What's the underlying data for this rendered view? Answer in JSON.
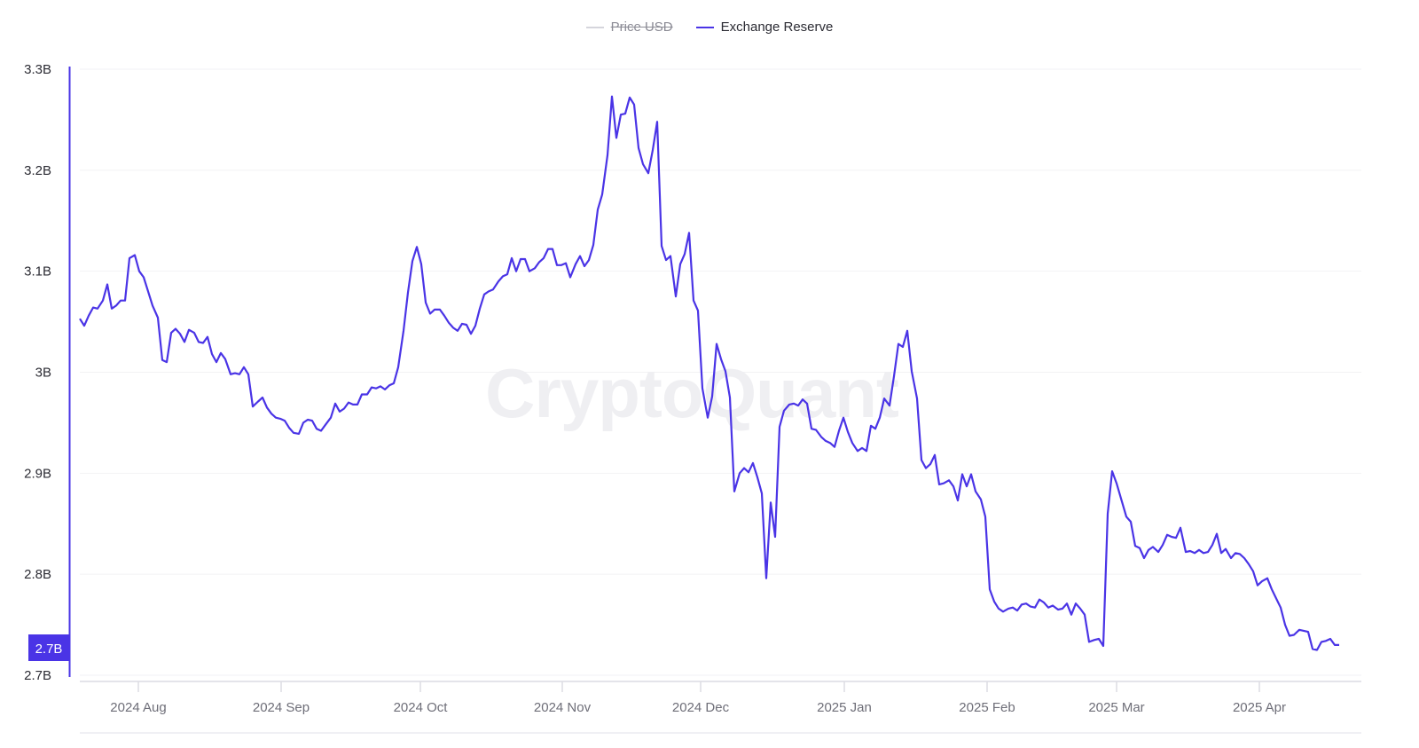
{
  "legend": [
    {
      "label": "Price USD",
      "color": "#cfcfd6",
      "enabled": false
    },
    {
      "label": "Exchange Reserve",
      "color": "#4a34e6",
      "enabled": true
    }
  ],
  "watermark": "CryptoQuant",
  "current_value_badge": "2.7B",
  "chart_data": {
    "type": "line",
    "title": "",
    "xlabel": "",
    "ylabel": "",
    "ylim": [
      2.7,
      3.3
    ],
    "y_ticks": [
      "3.3B",
      "3.2B",
      "3.1B",
      "3B",
      "2.9B",
      "2.8B",
      "2.7B"
    ],
    "x_ticks": [
      "2024 Aug",
      "2024 Sep",
      "2024 Oct",
      "2024 Nov",
      "2024 Dec",
      "2025 Jan",
      "2025 Feb",
      "2025 Mar",
      "2025 Apr"
    ],
    "grid": true,
    "legend_position": "top-center",
    "accent_color": "#4a34e6",
    "series": [
      {
        "name": "Exchange Reserve",
        "unit": "B",
        "points": [
          [
            90,
            3.053
          ],
          [
            95,
            3.046
          ],
          [
            100,
            3.056
          ],
          [
            105,
            3.064
          ],
          [
            110,
            3.063
          ],
          [
            116,
            3.071
          ],
          [
            121,
            3.087
          ],
          [
            126,
            3.063
          ],
          [
            131,
            3.066
          ],
          [
            136,
            3.071
          ],
          [
            141,
            3.071
          ],
          [
            146,
            3.113
          ],
          [
            152,
            3.116
          ],
          [
            157,
            3.1
          ],
          [
            162,
            3.094
          ],
          [
            167,
            3.08
          ],
          [
            172,
            3.066
          ],
          [
            178,
            3.054
          ],
          [
            183,
            3.012
          ],
          [
            188,
            3.01
          ],
          [
            193,
            3.039
          ],
          [
            198,
            3.043
          ],
          [
            203,
            3.038
          ],
          [
            208,
            3.03
          ],
          [
            213,
            3.042
          ],
          [
            219,
            3.039
          ],
          [
            224,
            3.03
          ],
          [
            229,
            3.029
          ],
          [
            234,
            3.035
          ],
          [
            239,
            3.018
          ],
          [
            244,
            3.01
          ],
          [
            249,
            3.019
          ],
          [
            254,
            3.013
          ],
          [
            260,
            2.998
          ],
          [
            265,
            2.999
          ],
          [
            270,
            2.998
          ],
          [
            275,
            3.005
          ],
          [
            280,
            2.998
          ],
          [
            285,
            2.966
          ],
          [
            291,
            2.971
          ],
          [
            296,
            2.975
          ],
          [
            301,
            2.965
          ],
          [
            306,
            2.959
          ],
          [
            311,
            2.955
          ],
          [
            316,
            2.954
          ],
          [
            321,
            2.952
          ],
          [
            326,
            2.945
          ],
          [
            331,
            2.94
          ],
          [
            337,
            2.939
          ],
          [
            342,
            2.95
          ],
          [
            347,
            2.953
          ],
          [
            352,
            2.952
          ],
          [
            357,
            2.944
          ],
          [
            362,
            2.942
          ],
          [
            367,
            2.948
          ],
          [
            373,
            2.955
          ],
          [
            378,
            2.969
          ],
          [
            383,
            2.961
          ],
          [
            388,
            2.964
          ],
          [
            393,
            2.97
          ],
          [
            398,
            2.968
          ],
          [
            403,
            2.968
          ],
          [
            408,
            2.978
          ],
          [
            414,
            2.978
          ],
          [
            419,
            2.985
          ],
          [
            424,
            2.984
          ],
          [
            429,
            2.986
          ],
          [
            434,
            2.983
          ],
          [
            439,
            2.987
          ],
          [
            444,
            2.989
          ],
          [
            449,
            3.005
          ],
          [
            455,
            3.041
          ],
          [
            460,
            3.079
          ],
          [
            465,
            3.11
          ],
          [
            470,
            3.124
          ],
          [
            475,
            3.107
          ],
          [
            480,
            3.069
          ],
          [
            485,
            3.058
          ],
          [
            490,
            3.062
          ],
          [
            496,
            3.062
          ],
          [
            501,
            3.056
          ],
          [
            506,
            3.049
          ],
          [
            511,
            3.044
          ],
          [
            516,
            3.041
          ],
          [
            521,
            3.048
          ],
          [
            526,
            3.047
          ],
          [
            531,
            3.038
          ],
          [
            536,
            3.046
          ],
          [
            541,
            3.063
          ],
          [
            546,
            3.077
          ],
          [
            551,
            3.08
          ],
          [
            556,
            3.082
          ],
          [
            562,
            3.09
          ],
          [
            567,
            3.095
          ],
          [
            572,
            3.097
          ],
          [
            577,
            3.113
          ],
          [
            582,
            3.1
          ],
          [
            587,
            3.112
          ],
          [
            592,
            3.112
          ],
          [
            597,
            3.1
          ],
          [
            603,
            3.103
          ],
          [
            608,
            3.109
          ],
          [
            613,
            3.113
          ],
          [
            618,
            3.122
          ],
          [
            623,
            3.122
          ],
          [
            628,
            3.106
          ],
          [
            633,
            3.106
          ],
          [
            638,
            3.108
          ],
          [
            643,
            3.094
          ],
          [
            649,
            3.107
          ],
          [
            654,
            3.115
          ],
          [
            659,
            3.105
          ],
          [
            664,
            3.111
          ],
          [
            669,
            3.126
          ],
          [
            674,
            3.161
          ],
          [
            679,
            3.176
          ],
          [
            685,
            3.215
          ],
          [
            690,
            3.273
          ],
          [
            695,
            3.232
          ],
          [
            700,
            3.255
          ],
          [
            705,
            3.256
          ],
          [
            710,
            3.272
          ],
          [
            715,
            3.265
          ],
          [
            720,
            3.222
          ],
          [
            725,
            3.206
          ],
          [
            731,
            3.197
          ],
          [
            736,
            3.22
          ],
          [
            741,
            3.248
          ],
          [
            746,
            3.125
          ],
          [
            751,
            3.111
          ],
          [
            756,
            3.115
          ],
          [
            762,
            3.075
          ],
          [
            767,
            3.107
          ],
          [
            772,
            3.117
          ],
          [
            777,
            3.138
          ],
          [
            782,
            3.071
          ],
          [
            787,
            3.061
          ],
          [
            792,
            2.984
          ],
          [
            798,
            2.955
          ],
          [
            803,
            2.976
          ],
          [
            808,
            3.028
          ],
          [
            813,
            3.013
          ],
          [
            818,
            3.001
          ],
          [
            823,
            2.975
          ],
          [
            828,
            2.882
          ],
          [
            834,
            2.9
          ],
          [
            839,
            2.905
          ],
          [
            844,
            2.901
          ],
          [
            849,
            2.91
          ],
          [
            854,
            2.896
          ],
          [
            859,
            2.88
          ],
          [
            864,
            2.796
          ],
          [
            869,
            2.871
          ],
          [
            874,
            2.837
          ],
          [
            879,
            2.946
          ],
          [
            884,
            2.962
          ],
          [
            890,
            2.968
          ],
          [
            895,
            2.969
          ],
          [
            900,
            2.967
          ],
          [
            905,
            2.973
          ],
          [
            910,
            2.969
          ],
          [
            915,
            2.944
          ],
          [
            920,
            2.943
          ],
          [
            926,
            2.936
          ],
          [
            931,
            2.932
          ],
          [
            936,
            2.93
          ],
          [
            941,
            2.926
          ],
          [
            946,
            2.942
          ],
          [
            951,
            2.955
          ],
          [
            956,
            2.941
          ],
          [
            961,
            2.93
          ],
          [
            967,
            2.922
          ],
          [
            972,
            2.925
          ],
          [
            977,
            2.922
          ],
          [
            982,
            2.947
          ],
          [
            987,
            2.944
          ],
          [
            992,
            2.955
          ],
          [
            997,
            2.974
          ],
          [
            1003,
            2.967
          ],
          [
            1008,
            2.996
          ],
          [
            1013,
            3.028
          ],
          [
            1018,
            3.025
          ],
          [
            1023,
            3.041
          ],
          [
            1028,
            3.001
          ],
          [
            1034,
            2.974
          ],
          [
            1039,
            2.913
          ],
          [
            1044,
            2.905
          ],
          [
            1049,
            2.909
          ],
          [
            1054,
            2.918
          ],
          [
            1059,
            2.889
          ],
          [
            1064,
            2.89
          ],
          [
            1070,
            2.893
          ],
          [
            1075,
            2.887
          ],
          [
            1080,
            2.873
          ],
          [
            1085,
            2.899
          ],
          [
            1090,
            2.887
          ],
          [
            1095,
            2.899
          ],
          [
            1100,
            2.882
          ],
          [
            1106,
            2.874
          ],
          [
            1111,
            2.857
          ],
          [
            1116,
            2.785
          ],
          [
            1121,
            2.773
          ],
          [
            1126,
            2.766
          ],
          [
            1131,
            2.763
          ],
          [
            1137,
            2.766
          ],
          [
            1142,
            2.767
          ],
          [
            1147,
            2.764
          ],
          [
            1152,
            2.77
          ],
          [
            1157,
            2.771
          ],
          [
            1162,
            2.768
          ],
          [
            1167,
            2.767
          ],
          [
            1172,
            2.775
          ],
          [
            1177,
            2.772
          ],
          [
            1182,
            2.767
          ],
          [
            1187,
            2.769
          ],
          [
            1193,
            2.765
          ],
          [
            1198,
            2.766
          ],
          [
            1203,
            2.771
          ],
          [
            1208,
            2.76
          ],
          [
            1213,
            2.771
          ],
          [
            1218,
            2.766
          ],
          [
            1223,
            2.76
          ],
          [
            1228,
            2.733
          ],
          [
            1234,
            2.735
          ],
          [
            1239,
            2.736
          ],
          [
            1244,
            2.729
          ],
          [
            1249,
            2.86
          ],
          [
            1254,
            2.902
          ],
          [
            1259,
            2.89
          ],
          [
            1264,
            2.875
          ],
          [
            1270,
            2.857
          ],
          [
            1275,
            2.852
          ],
          [
            1280,
            2.828
          ],
          [
            1285,
            2.826
          ],
          [
            1290,
            2.816
          ],
          [
            1295,
            2.824
          ],
          [
            1300,
            2.827
          ],
          [
            1306,
            2.822
          ],
          [
            1311,
            2.829
          ],
          [
            1316,
            2.839
          ],
          [
            1321,
            2.837
          ],
          [
            1326,
            2.836
          ],
          [
            1331,
            2.846
          ],
          [
            1337,
            2.822
          ],
          [
            1342,
            2.823
          ],
          [
            1347,
            2.821
          ],
          [
            1352,
            2.824
          ],
          [
            1357,
            2.821
          ],
          [
            1362,
            2.822
          ],
          [
            1367,
            2.829
          ],
          [
            1372,
            2.84
          ],
          [
            1377,
            2.821
          ],
          [
            1382,
            2.825
          ],
          [
            1388,
            2.816
          ],
          [
            1393,
            2.821
          ],
          [
            1398,
            2.82
          ],
          [
            1403,
            2.816
          ],
          [
            1408,
            2.81
          ],
          [
            1413,
            2.803
          ],
          [
            1418,
            2.789
          ],
          [
            1423,
            2.793
          ],
          [
            1429,
            2.796
          ],
          [
            1434,
            2.785
          ],
          [
            1439,
            2.776
          ],
          [
            1444,
            2.767
          ],
          [
            1449,
            2.75
          ],
          [
            1454,
            2.739
          ],
          [
            1459,
            2.74
          ],
          [
            1465,
            2.745
          ],
          [
            1470,
            2.744
          ],
          [
            1475,
            2.743
          ],
          [
            1480,
            2.726
          ],
          [
            1485,
            2.725
          ],
          [
            1490,
            2.733
          ],
          [
            1495,
            2.734
          ],
          [
            1500,
            2.736
          ],
          [
            1505,
            2.73
          ],
          [
            1510,
            2.73
          ]
        ]
      }
    ]
  }
}
